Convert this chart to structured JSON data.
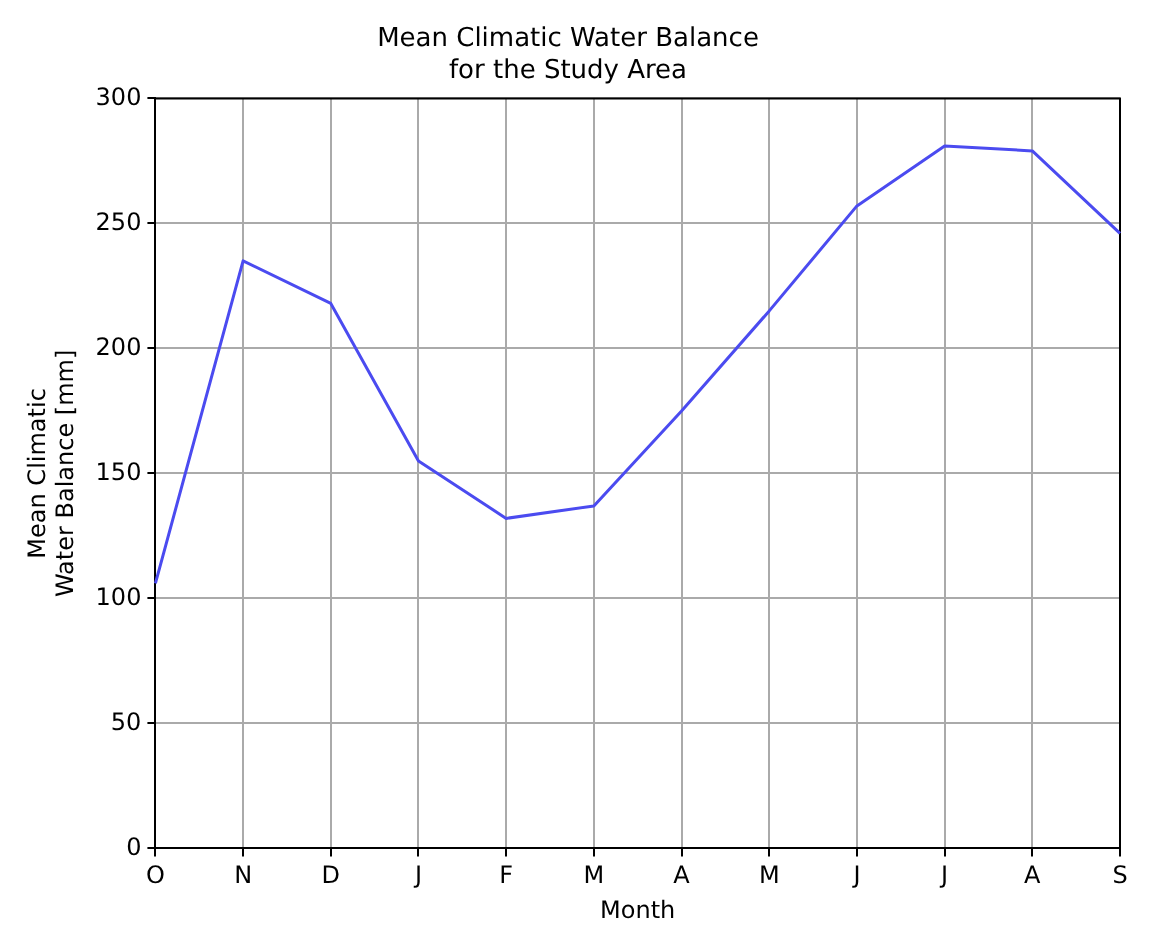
{
  "chart_data": {
    "type": "line",
    "title": "Mean Climatic Water Balance\nfor the Study Area",
    "xlabel": "Month",
    "ylabel": "Mean Climatic\nWater Balance [mm]",
    "categories": [
      "O",
      "N",
      "D",
      "J",
      "F",
      "M",
      "A",
      "M",
      "J",
      "J",
      "A",
      "S"
    ],
    "series": [
      {
        "color": "#4b4bf0",
        "values": [
          106,
          235,
          218,
          155,
          132,
          137,
          175,
          215,
          257,
          281,
          279,
          246
        ]
      }
    ],
    "ylim": [
      0,
      300
    ],
    "yticks": [
      0,
      50,
      100,
      150,
      200,
      250,
      300
    ],
    "grid": true,
    "legend": false,
    "marker": "none",
    "line_style": "solid"
  }
}
